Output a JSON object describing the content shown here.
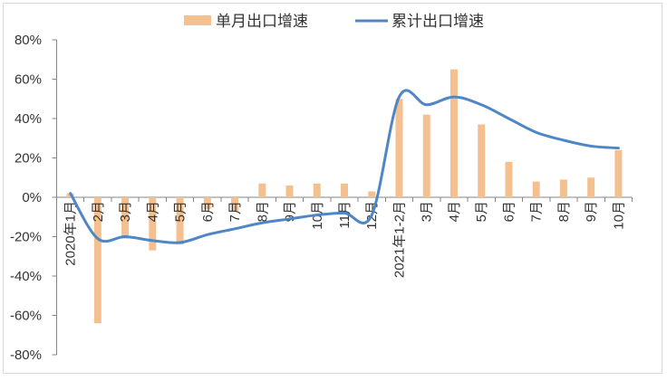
{
  "chart_data": {
    "type": "bar",
    "categories": [
      "2020年1月",
      "2月",
      "3月",
      "4月",
      "5月",
      "6月",
      "7月",
      "8月",
      "9月",
      "10月",
      "11月",
      "12月",
      "2021年1-2月",
      "3月",
      "4月",
      "5月",
      "6月",
      "7月",
      "8月",
      "9月",
      "10月"
    ],
    "series": [
      {
        "name": "单月出口增速",
        "type": "bar",
        "color": "#F5C08F",
        "values": [
          2,
          -64,
          -21,
          -27,
          -24,
          -6,
          -7,
          7,
          6,
          7,
          7,
          3,
          50,
          42,
          65,
          37,
          18,
          8,
          9,
          10,
          24
        ]
      },
      {
        "name": "累计出口增速",
        "type": "line",
        "smooth": true,
        "color": "#4F86C6",
        "values": [
          2,
          -21,
          -20,
          -22,
          -23,
          -19,
          -16,
          -13,
          -11,
          -9,
          -8,
          -9,
          51,
          47,
          51,
          47,
          40,
          33,
          29,
          26,
          25
        ]
      }
    ],
    "ylim": [
      -80,
      80
    ],
    "yticks": [
      80,
      60,
      40,
      20,
      0,
      -20,
      -40,
      -60,
      -80
    ],
    "ytick_labels": [
      "80%",
      "60%",
      "40%",
      "20%",
      "0%",
      "-20%",
      "-40%",
      "-60%",
      "-80%"
    ],
    "legend": "top",
    "grid": false
  }
}
